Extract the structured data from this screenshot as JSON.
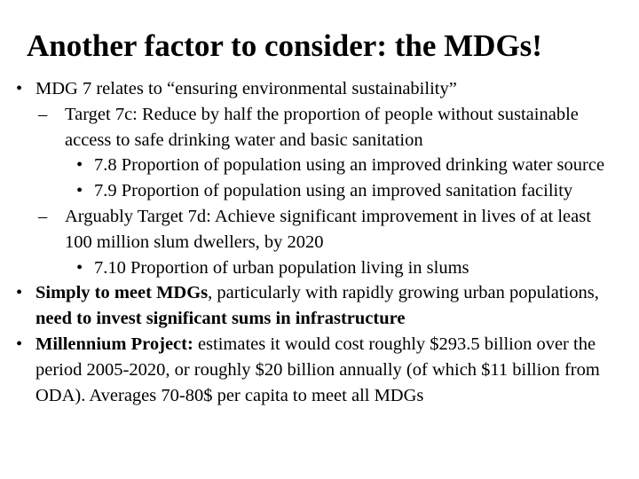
{
  "slide": {
    "title": "Another factor to consider: the MDGs!",
    "bullets": [
      {
        "marker": "•",
        "text": "MDG 7 relates to “ensuring environmental sustainability”"
      },
      {
        "marker": "–",
        "text": "Target 7c: Reduce by half the proportion of people without sustainable access to safe drinking water and basic sanitation"
      },
      {
        "marker": "•",
        "text": "7.8 Proportion of population using an improved drinking water source"
      },
      {
        "marker": "•",
        "text": "7.9 Proportion of population using an improved sanitation facility"
      },
      {
        "marker": "–",
        "text": "Arguably Target 7d: Achieve significant improvement in lives of at least 100 million slum dwellers, by 2020"
      },
      {
        "marker": "•",
        "text": "7.10 Proportion of urban population living in slums"
      },
      {
        "marker": "•",
        "bold_1": "Simply to meet MDGs",
        "text_1": ", particularly with rapidly growing urban populations, ",
        "bold_2": "need to invest significant sums in infrastructure"
      },
      {
        "marker": "•",
        "bold_1": "Millennium Project:",
        "text_1": " estimates it would cost roughly $293.5 billion over the period 2005-2020, or roughly $20 billion annually (of which $11 billion from ODA). Averages 70-80$ per capita to meet all MDGs"
      }
    ]
  }
}
